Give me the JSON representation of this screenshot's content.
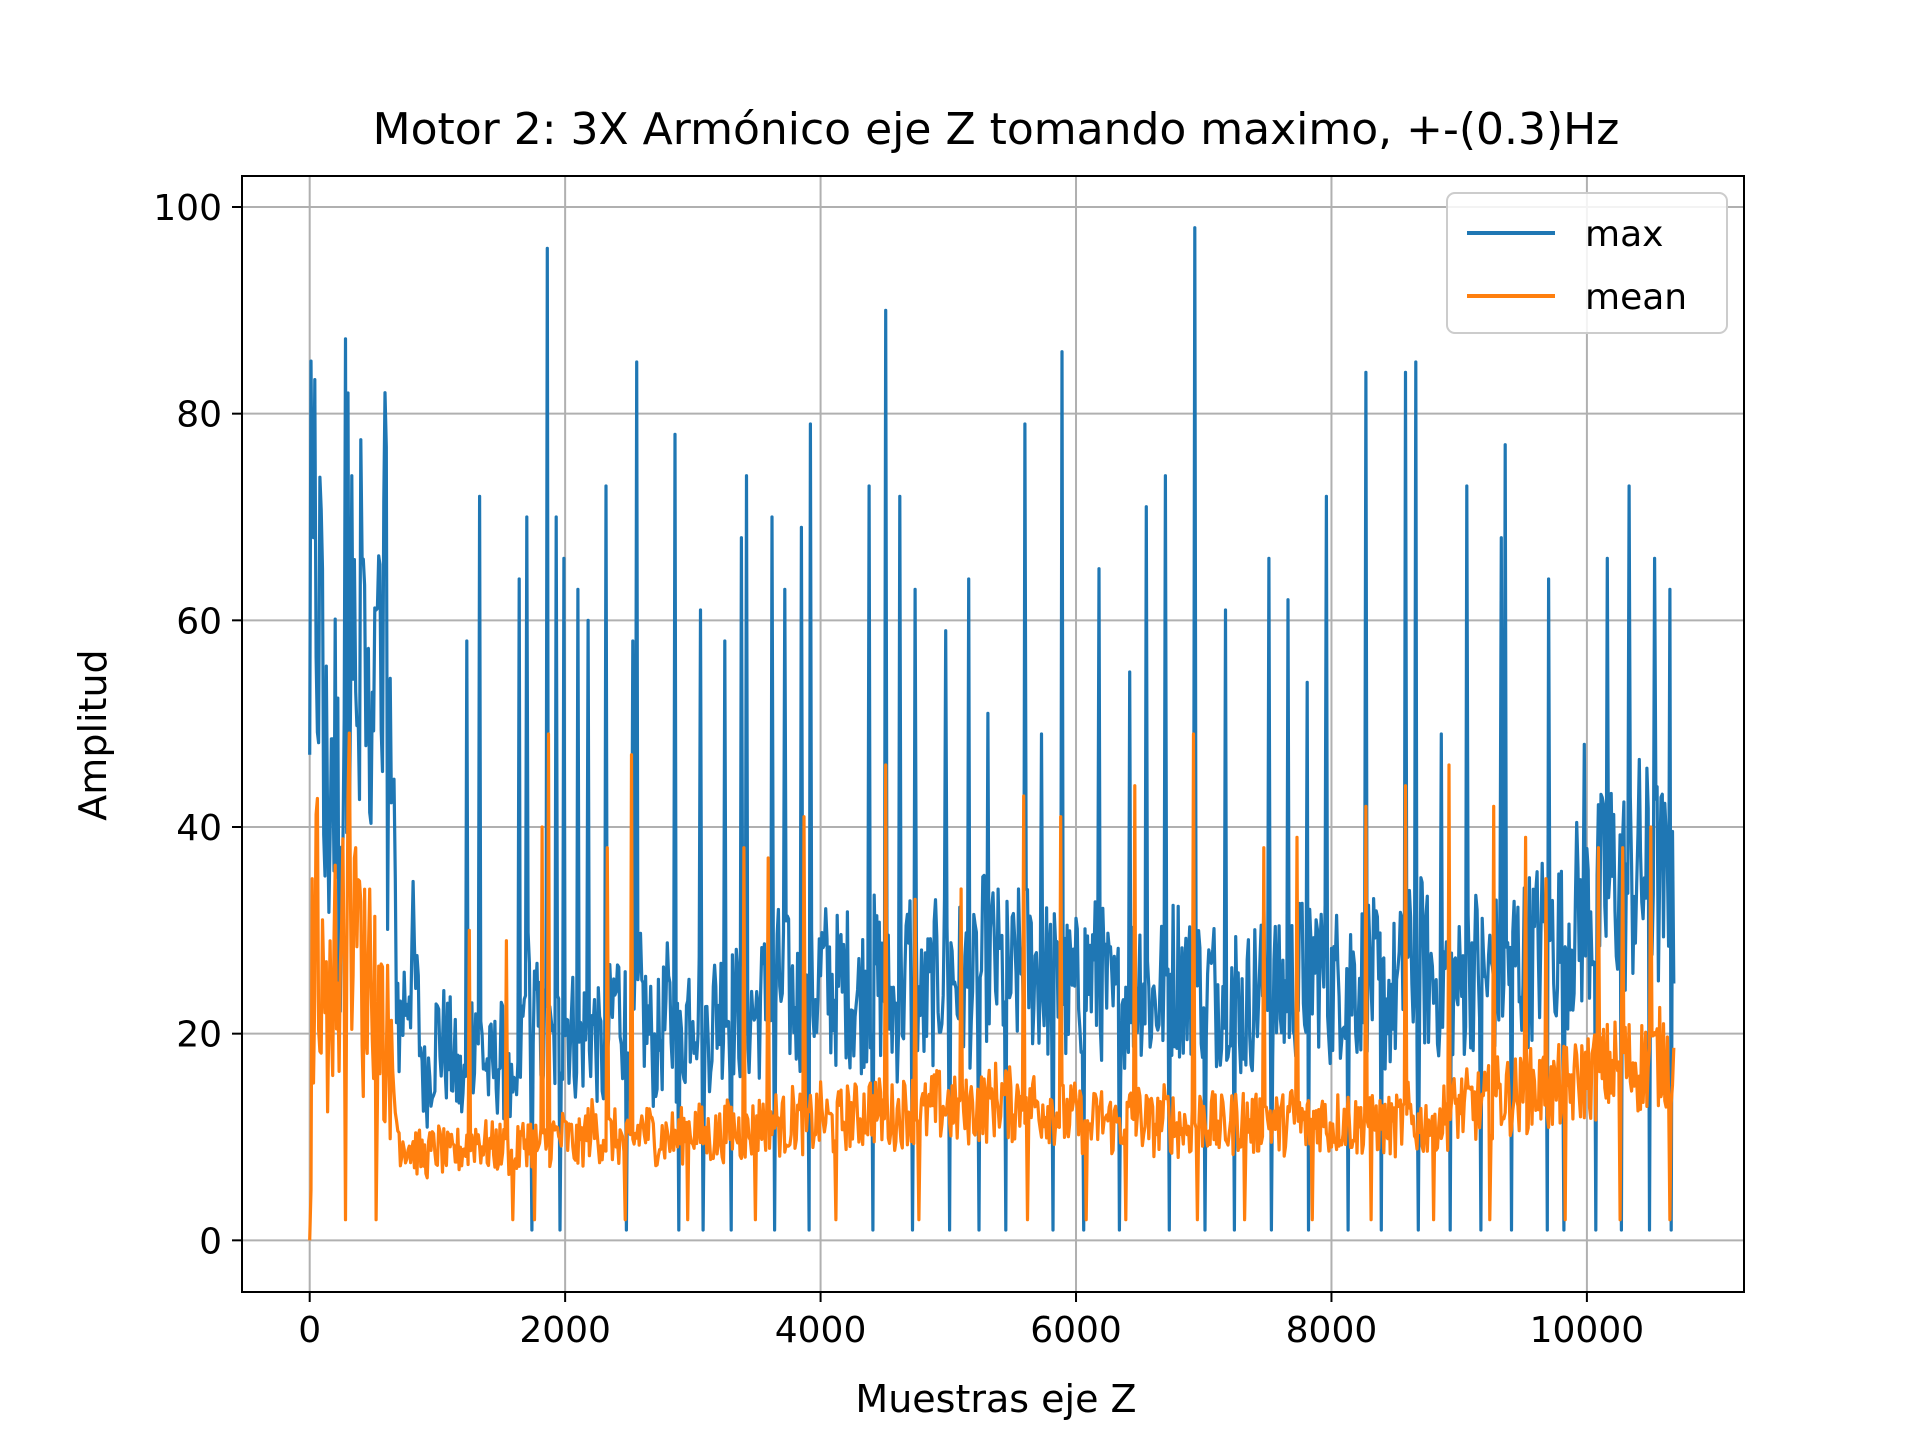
{
  "chart_data": {
    "type": "line",
    "title": "Motor 2: 3X Armónico eje Z tomando maximo, +-(0.3)Hz",
    "xlabel": "Muestras eje Z",
    "ylabel": "Amplitud",
    "xlim": [
      -530,
      11230
    ],
    "ylim": [
      -5,
      103
    ],
    "xticks": [
      0,
      2000,
      4000,
      6000,
      8000,
      10000
    ],
    "xtick_labels": [
      "0",
      "2000",
      "4000",
      "6000",
      "8000",
      "10000"
    ],
    "yticks": [
      0,
      20,
      40,
      60,
      80,
      100
    ],
    "ytick_labels": [
      "0",
      "20",
      "40",
      "60",
      "80",
      "100"
    ],
    "grid": true,
    "legend": "top-right",
    "series": [
      {
        "name": "max",
        "color": "#1f77b4",
        "x": [
          0,
          60,
          120,
          180,
          240,
          300,
          360,
          420,
          480,
          540,
          600,
          700,
          800,
          900,
          1000,
          1100,
          1200,
          1300,
          1400,
          1500,
          1600,
          1700,
          1800,
          1900,
          2000,
          2100,
          2200,
          2300,
          2400,
          2500,
          2600,
          2700,
          2800,
          2900,
          3000,
          3100,
          3200,
          3300,
          3400,
          3500,
          3600,
          3700,
          3800,
          3900,
          4000,
          4100,
          4200,
          4300,
          4400,
          4500,
          4600,
          4700,
          4800,
          4900,
          5000,
          5100,
          5200,
          5300,
          5400,
          5500,
          5600,
          5700,
          5800,
          5900,
          6000,
          6100,
          6200,
          6300,
          6400,
          6500,
          6600,
          6700,
          6800,
          6900,
          7000,
          7100,
          7200,
          7300,
          7400,
          7500,
          7600,
          7700,
          7800,
          7900,
          8000,
          8100,
          8200,
          8300,
          8400,
          8500,
          8600,
          8700,
          8800,
          8900,
          9000,
          9100,
          9200,
          9300,
          9400,
          9500,
          9600,
          9700,
          9800,
          9900,
          10000,
          10100,
          10200,
          10300,
          10400,
          10500,
          10600,
          10680
        ],
        "y": [
          57,
          68,
          40,
          50,
          35,
          76,
          45,
          60,
          38,
          50,
          58,
          20,
          28,
          15,
          20,
          18,
          14,
          22,
          16,
          18,
          12,
          24,
          20,
          18,
          22,
          19,
          21,
          17,
          24,
          20,
          23,
          18,
          22,
          18,
          25,
          20,
          23,
          22,
          22,
          22,
          24,
          25,
          23,
          22,
          26,
          24,
          25,
          23,
          26,
          24,
          22,
          27,
          22,
          25,
          27,
          25,
          24,
          28,
          26,
          25,
          27,
          26,
          25,
          24,
          24,
          26,
          25,
          22,
          24,
          26,
          23,
          25,
          26,
          24,
          25,
          24,
          26,
          22,
          24,
          26,
          23,
          25,
          26,
          27,
          24,
          26,
          25,
          26,
          23,
          24,
          26,
          27,
          25,
          26,
          24,
          27,
          25,
          26,
          28,
          27,
          28,
          30,
          29,
          31,
          32,
          33,
          35,
          34,
          36,
          35,
          34,
          30
        ],
        "spikes": [
          [
            30,
            68
          ],
          [
            100,
            65
          ],
          [
            300,
            82
          ],
          [
            330,
            74
          ],
          [
            410,
            66
          ],
          [
            520,
            61
          ],
          [
            1230,
            58
          ],
          [
            1330,
            72
          ],
          [
            1640,
            64
          ],
          [
            1700,
            70
          ],
          [
            1860,
            96
          ],
          [
            1930,
            70
          ],
          [
            1990,
            66
          ],
          [
            2100,
            63
          ],
          [
            2180,
            60
          ],
          [
            2320,
            73
          ],
          [
            2530,
            58
          ],
          [
            2560,
            85
          ],
          [
            2860,
            78
          ],
          [
            3060,
            61
          ],
          [
            3250,
            58
          ],
          [
            3380,
            68
          ],
          [
            3420,
            74
          ],
          [
            3620,
            70
          ],
          [
            3720,
            63
          ],
          [
            3850,
            69
          ],
          [
            3920,
            79
          ],
          [
            4380,
            73
          ],
          [
            4510,
            90
          ],
          [
            4620,
            72
          ],
          [
            4740,
            63
          ],
          [
            4980,
            59
          ],
          [
            5160,
            64
          ],
          [
            5310,
            51
          ],
          [
            5600,
            79
          ],
          [
            5730,
            49
          ],
          [
            5890,
            86
          ],
          [
            6180,
            65
          ],
          [
            6420,
            55
          ],
          [
            6550,
            71
          ],
          [
            6700,
            74
          ],
          [
            6930,
            98
          ],
          [
            7170,
            61
          ],
          [
            7510,
            66
          ],
          [
            7660,
            62
          ],
          [
            7810,
            54
          ],
          [
            7960,
            72
          ],
          [
            8270,
            84
          ],
          [
            8580,
            84
          ],
          [
            8660,
            85
          ],
          [
            8860,
            49
          ],
          [
            9060,
            73
          ],
          [
            9330,
            68
          ],
          [
            9360,
            77
          ],
          [
            9700,
            64
          ],
          [
            9980,
            48
          ],
          [
            10160,
            66
          ],
          [
            10330,
            73
          ],
          [
            10530,
            66
          ],
          [
            10650,
            63
          ]
        ],
        "dips": [
          [
            1740,
            1
          ],
          [
            1960,
            1
          ],
          [
            2480,
            1
          ],
          [
            2890,
            1
          ],
          [
            3080,
            1
          ],
          [
            3300,
            1
          ],
          [
            3640,
            1
          ],
          [
            3910,
            1
          ],
          [
            4410,
            1
          ],
          [
            4720,
            1
          ],
          [
            5010,
            1
          ],
          [
            5240,
            1
          ],
          [
            5450,
            1
          ],
          [
            5820,
            1
          ],
          [
            6060,
            1
          ],
          [
            6340,
            1
          ],
          [
            6730,
            1
          ],
          [
            7010,
            1
          ],
          [
            7240,
            1
          ],
          [
            7530,
            1
          ],
          [
            7820,
            1
          ],
          [
            8130,
            1
          ],
          [
            8390,
            1
          ],
          [
            8680,
            1
          ],
          [
            8930,
            1
          ],
          [
            9170,
            1
          ],
          [
            9410,
            1
          ],
          [
            9690,
            1
          ],
          [
            9820,
            1
          ],
          [
            10070,
            1
          ],
          [
            10270,
            1
          ],
          [
            10490,
            1
          ],
          [
            10660,
            1
          ]
        ]
      },
      {
        "name": "mean",
        "color": "#ff7f0e",
        "x": [
          0,
          60,
          120,
          180,
          240,
          300,
          360,
          420,
          480,
          540,
          600,
          700,
          800,
          900,
          1000,
          1100,
          1200,
          1300,
          1400,
          1500,
          1600,
          1700,
          1800,
          1900,
          2000,
          2100,
          2200,
          2300,
          2400,
          2500,
          2600,
          2700,
          2800,
          2900,
          3000,
          3100,
          3200,
          3300,
          3400,
          3500,
          3600,
          3700,
          3800,
          3900,
          4000,
          4100,
          4200,
          4300,
          4400,
          4500,
          4600,
          4700,
          4800,
          4900,
          5000,
          5100,
          5200,
          5300,
          5400,
          5500,
          5600,
          5700,
          5800,
          5900,
          6000,
          6100,
          6200,
          6300,
          6400,
          6500,
          6600,
          6700,
          6800,
          6900,
          7000,
          7100,
          7200,
          7300,
          7400,
          7500,
          7600,
          7700,
          7800,
          7900,
          8000,
          8100,
          8200,
          8300,
          8400,
          8500,
          8600,
          8700,
          8800,
          8900,
          9000,
          9100,
          9200,
          9300,
          9400,
          9500,
          9600,
          9700,
          9800,
          9900,
          10000,
          10100,
          10200,
          10300,
          10400,
          10500,
          10600,
          10680
        ],
        "y": [
          0,
          35,
          20,
          27,
          25,
          35,
          32,
          24,
          28,
          22,
          20,
          10,
          9,
          8,
          9,
          8,
          9,
          10,
          9,
          9,
          8,
          10,
          9,
          10,
          10,
          9,
          11,
          10,
          10,
          9,
          11,
          10,
          10,
          10,
          11,
          10,
          10,
          11,
          10,
          11,
          12,
          11,
          12,
          11,
          12,
          11,
          12,
          12,
          13,
          12,
          12,
          13,
          12,
          13,
          13,
          12,
          13,
          13,
          14,
          13,
          14,
          13,
          13,
          12,
          12,
          11,
          12,
          11,
          12,
          12,
          11,
          12,
          11,
          11,
          12,
          11,
          11,
          12,
          11,
          12,
          11,
          12,
          11,
          12,
          11,
          12,
          11,
          12,
          11,
          11,
          12,
          11,
          12,
          12,
          13,
          13,
          13,
          14,
          14,
          14,
          15,
          14,
          15,
          15,
          16,
          16,
          17,
          17,
          17,
          17,
          18,
          17
        ],
        "spikes": [
          [
            20,
            35
          ],
          [
            300,
            43
          ],
          [
            360,
            38
          ],
          [
            1250,
            30
          ],
          [
            1540,
            29
          ],
          [
            1870,
            49
          ],
          [
            1820,
            40
          ],
          [
            2330,
            38
          ],
          [
            2520,
            47
          ],
          [
            3400,
            38
          ],
          [
            3590,
            37
          ],
          [
            3870,
            41
          ],
          [
            4510,
            46
          ],
          [
            4740,
            33
          ],
          [
            5100,
            34
          ],
          [
            5590,
            43
          ],
          [
            5880,
            41
          ],
          [
            6460,
            44
          ],
          [
            6920,
            49
          ],
          [
            7470,
            38
          ],
          [
            7730,
            39
          ],
          [
            8270,
            42
          ],
          [
            8580,
            44
          ],
          [
            8920,
            46
          ],
          [
            9270,
            42
          ],
          [
            9520,
            39
          ],
          [
            9680,
            35
          ],
          [
            10090,
            38
          ],
          [
            10280,
            38
          ],
          [
            10500,
            40
          ],
          [
            10650,
            33
          ]
        ],
        "dips": [
          [
            0,
            0
          ],
          [
            280,
            2
          ],
          [
            520,
            2
          ],
          [
            1590,
            2
          ],
          [
            1760,
            2
          ],
          [
            2470,
            2
          ],
          [
            2960,
            2
          ],
          [
            3490,
            2
          ],
          [
            4120,
            2
          ],
          [
            4770,
            2
          ],
          [
            5620,
            2
          ],
          [
            6080,
            2
          ],
          [
            6390,
            2
          ],
          [
            6950,
            2
          ],
          [
            7320,
            2
          ],
          [
            7850,
            2
          ],
          [
            8310,
            2
          ],
          [
            8800,
            2
          ],
          [
            9240,
            2
          ],
          [
            9830,
            2
          ],
          [
            10260,
            2
          ],
          [
            10650,
            2
          ]
        ]
      }
    ]
  }
}
